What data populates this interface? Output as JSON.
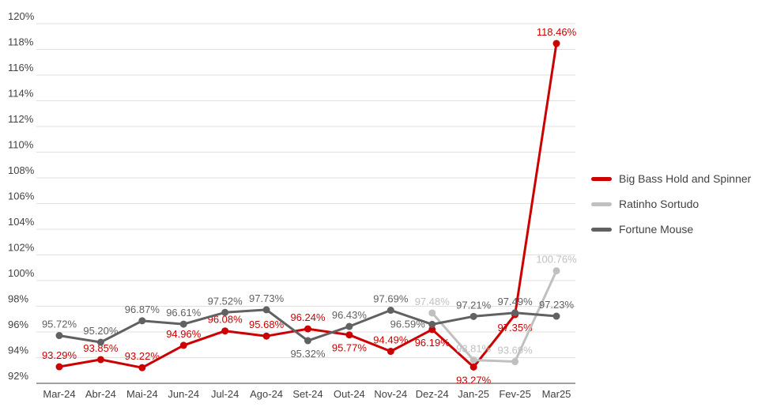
{
  "chart_data": {
    "type": "line",
    "title": "",
    "xlabel": "",
    "ylabel": "",
    "categories": [
      "Mar-24",
      "Abr-24",
      "Mai-24",
      "Jun-24",
      "Jul-24",
      "Ago-24",
      "Set-24",
      "Out-24",
      "Nov-24",
      "Dez-24",
      "Jan-25",
      "Fev-25",
      "Mar25"
    ],
    "ylim": [
      92,
      120
    ],
    "ytick_step": 2,
    "ytick_labels": [
      "92%",
      "94%",
      "96%",
      "98%",
      "100%",
      "102%",
      "104%",
      "106%",
      "108%",
      "110%",
      "112%",
      "114%",
      "116%",
      "118%",
      "120%"
    ],
    "grid": true,
    "legend_position": "right",
    "value_suffix": "%",
    "colors": {
      "gridline": "#e0e0e0",
      "axis_line": "#424242",
      "axis_label": "#424242",
      "background": "#ffffff"
    },
    "series": [
      {
        "name": "Big Bass Hold and Spinner",
        "color": "#cc0000",
        "values": [
          93.29,
          93.85,
          93.22,
          94.96,
          96.08,
          95.68,
          96.24,
          95.77,
          94.49,
          96.19,
          93.27,
          97.35,
          118.46
        ],
        "point_labels": [
          "93.29%",
          "93.85%",
          "93.22%",
          "94.96%",
          "96.08%",
          "95.68%",
          "96.24%",
          "95.77%",
          "94.49%",
          "96.19%",
          "93.27%",
          "97.35%",
          "118.46%"
        ],
        "label_positions": [
          "above",
          "above",
          "above",
          "above",
          "above",
          "above",
          "above",
          "below",
          "above",
          "below",
          "below",
          "below",
          "above"
        ]
      },
      {
        "name": "Ratinho Sortudo",
        "color": "#c0c0c0",
        "values": [
          null,
          null,
          null,
          null,
          null,
          null,
          null,
          null,
          null,
          97.48,
          93.81,
          93.69,
          100.76
        ],
        "point_labels": [
          null,
          null,
          null,
          null,
          null,
          null,
          null,
          null,
          null,
          "97.48%",
          "93.81%",
          "93.69%",
          "100.76%"
        ],
        "label_positions": [
          null,
          null,
          null,
          null,
          null,
          null,
          null,
          null,
          null,
          "above",
          "above",
          "above",
          "above"
        ]
      },
      {
        "name": "Fortune Mouse",
        "color": "#616161",
        "values": [
          95.72,
          95.2,
          96.87,
          96.61,
          97.52,
          97.73,
          95.32,
          96.43,
          97.69,
          96.59,
          97.21,
          97.49,
          97.23
        ],
        "point_labels": [
          "95.72%",
          "95.20%",
          "96.87%",
          "96.61%",
          "97.52%",
          "97.73%",
          "95.32%",
          "96.43%",
          "97.69%",
          "96.59%",
          "97.21%",
          "97.49%",
          "97.23%"
        ],
        "label_positions": [
          "above",
          "above",
          "above",
          "above",
          "above",
          "above",
          "below",
          "above",
          "above",
          "left",
          "above",
          "above",
          "above"
        ]
      }
    ]
  }
}
